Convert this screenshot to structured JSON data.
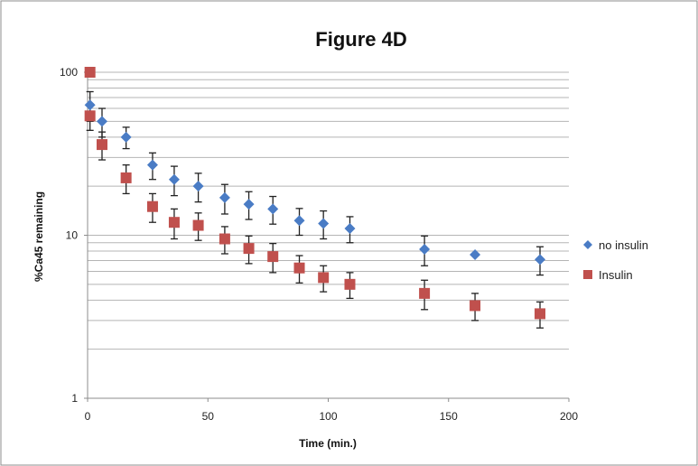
{
  "chart_data": {
    "type": "scatter",
    "title": "Figure 4D",
    "xlabel": "Time (min.)",
    "ylabel": "%Ca45 remaining",
    "xlim": [
      0,
      200
    ],
    "ylim": [
      1,
      100
    ],
    "yscale": "log",
    "x_ticks": [
      "0",
      "50",
      "100",
      "150",
      "200"
    ],
    "y_ticks": [
      "1",
      "10",
      "100"
    ],
    "grid": true,
    "legend_position": "right",
    "series": [
      {
        "name": "no insulin",
        "color": "#4a7cc5",
        "marker": "diamond",
        "points": [
          {
            "x": 1,
            "y": 63,
            "err": 13
          },
          {
            "x": 6,
            "y": 50,
            "err": 10
          },
          {
            "x": 16,
            "y": 40,
            "err": 6
          },
          {
            "x": 27,
            "y": 27,
            "err": 5
          },
          {
            "x": 36,
            "y": 22,
            "err": 4.5
          },
          {
            "x": 46,
            "y": 20,
            "err": 4
          },
          {
            "x": 57,
            "y": 17,
            "err": 3.5
          },
          {
            "x": 67,
            "y": 15.5,
            "err": 3
          },
          {
            "x": 77,
            "y": 14.5,
            "err": 2.8
          },
          {
            "x": 88,
            "y": 12.3,
            "err": 2.3
          },
          {
            "x": 98,
            "y": 11.8,
            "err": 2.3
          },
          {
            "x": 109,
            "y": 11,
            "err": 2
          },
          {
            "x": 140,
            "y": 8.2,
            "err": 1.7
          },
          {
            "x": 161,
            "y": 7.6,
            "err": 0
          },
          {
            "x": 188,
            "y": 7.1,
            "err": 1.4
          }
        ]
      },
      {
        "name": "Insulin",
        "color": "#c0504d",
        "marker": "square",
        "points": [
          {
            "x": 1,
            "y": 100,
            "err": 0
          },
          {
            "x": 1,
            "y": 54,
            "err": 10
          },
          {
            "x": 6,
            "y": 36,
            "err": 7
          },
          {
            "x": 16,
            "y": 22.5,
            "err": 4.5
          },
          {
            "x": 27,
            "y": 15,
            "err": 3
          },
          {
            "x": 36,
            "y": 12,
            "err": 2.5
          },
          {
            "x": 46,
            "y": 11.5,
            "err": 2.2
          },
          {
            "x": 57,
            "y": 9.5,
            "err": 1.8
          },
          {
            "x": 67,
            "y": 8.3,
            "err": 1.6
          },
          {
            "x": 77,
            "y": 7.4,
            "err": 1.5
          },
          {
            "x": 88,
            "y": 6.3,
            "err": 1.2
          },
          {
            "x": 98,
            "y": 5.5,
            "err": 1
          },
          {
            "x": 109,
            "y": 5,
            "err": 0.9
          },
          {
            "x": 140,
            "y": 4.4,
            "err": 0.9
          },
          {
            "x": 161,
            "y": 3.7,
            "err": 0.7
          },
          {
            "x": 188,
            "y": 3.3,
            "err": 0.6
          }
        ]
      }
    ]
  }
}
